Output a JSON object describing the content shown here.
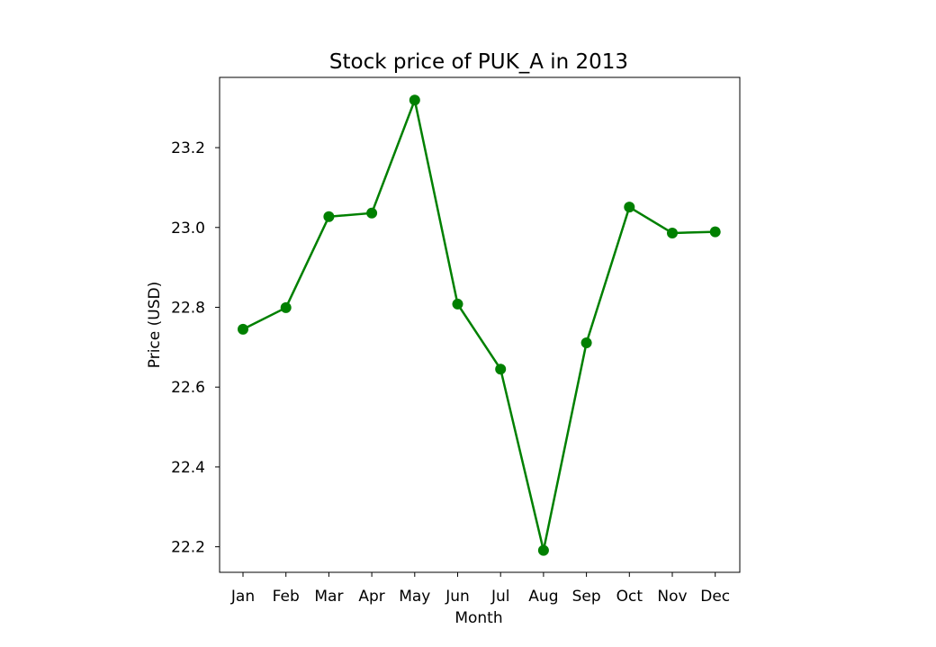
{
  "chart_data": {
    "type": "line",
    "title": "Stock price of PUK_A in 2013",
    "xlabel": "Month",
    "ylabel": "Price (USD)",
    "categories": [
      "Jan",
      "Feb",
      "Mar",
      "Apr",
      "May",
      "Jun",
      "Jul",
      "Aug",
      "Sep",
      "Oct",
      "Nov",
      "Dec"
    ],
    "series": [
      {
        "values": [
          22.745,
          22.799,
          23.027,
          23.036,
          23.319,
          22.808,
          22.645,
          22.191,
          22.711,
          23.051,
          22.986,
          22.989
        ],
        "color": "#008000",
        "marker": "circle"
      }
    ],
    "yticks": [
      22.2,
      22.4,
      22.6,
      22.8,
      23.0,
      23.2
    ],
    "ytick_labels": [
      "22.2",
      "22.4",
      "22.6",
      "22.8",
      "23.0",
      "23.2"
    ],
    "ylim": [
      22.136,
      23.376
    ],
    "grid": false,
    "legend": "none"
  }
}
